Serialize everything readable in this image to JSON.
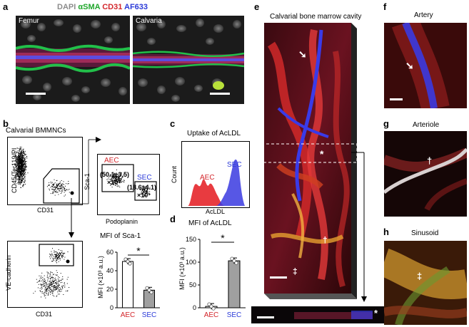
{
  "panel_labels": {
    "a": "a",
    "b": "b",
    "c": "c",
    "d": "d",
    "e": "e",
    "f": "f",
    "g": "g",
    "h": "h"
  },
  "panel_a": {
    "legend": [
      {
        "text": "DAPI",
        "color": "#8c8c8c"
      },
      {
        "text": "αSMA",
        "color": "#1fa62b"
      },
      {
        "text": "CD31",
        "color": "#d3262b"
      },
      {
        "text": "AF633",
        "color": "#2b3ad8"
      }
    ],
    "femur": "Femur",
    "calvaria": "Calvaria"
  },
  "panel_b": {
    "title": "Calvarial BMMNCs",
    "plot1": {
      "ylabel": "CD45/Ter119/PI",
      "xlabel": "CD31"
    },
    "plot2": {
      "ylabel": "VE-cadherin",
      "xlabel": "CD31"
    },
    "plot3": {
      "ylabel": "Sca-1",
      "xlabel": "Podoplanin",
      "aec": "AEC",
      "sec": "SEC",
      "aec_val_1": "(50.1±3.5)",
      "aec_val_2": "×10³",
      "sec_val_1": "(18.6±4.1)",
      "sec_val_2": "×10³"
    },
    "bar_chart_title": "MFI of Sca-1",
    "bar_chart_ylabel": "MFI (×10³ a.u.)",
    "significance": "*"
  },
  "panel_c": {
    "title": "Uptake of AcLDL",
    "ylabel": "Count",
    "xlabel": "AcLDL",
    "aec": "AEC",
    "sec": "SEC"
  },
  "panel_d": {
    "title": "MFI of AcLDL",
    "ylabel": "MFI (×10³ a.u.)",
    "significance": "*"
  },
  "panel_e": {
    "title": "Calvarial bone marrow cavity"
  },
  "panel_f": {
    "title": "Artery"
  },
  "panel_g": {
    "title": "Arteriole"
  },
  "panel_h": {
    "title": "Sinusoid"
  },
  "symbols": {
    "dagger": "†",
    "ddagger": "‡",
    "star": "*"
  },
  "chart_data": [
    {
      "type": "bar",
      "title": "MFI of Sca-1",
      "categories": [
        "AEC",
        "SEC"
      ],
      "values": [
        50,
        19
      ],
      "ylabel": "MFI (×10³ a.u.)",
      "ylim": [
        0,
        60
      ],
      "yticks": [
        0,
        20,
        40,
        60
      ],
      "bar_colors": [
        "#ffffff",
        "#a0a0a0"
      ],
      "category_colors": [
        "#d3262b",
        "#2b3ad8"
      ]
    },
    {
      "type": "bar",
      "title": "MFI of AcLDL",
      "categories": [
        "AEC",
        "SEC"
      ],
      "values": [
        3,
        103
      ],
      "ylabel": "MFI (×10³ a.u.)",
      "ylim": [
        0,
        150
      ],
      "yticks": [
        0,
        50,
        100,
        150
      ],
      "bar_colors": [
        "#ffffff",
        "#a0a0a0"
      ],
      "category_colors": [
        "#d3262b",
        "#2b3ad8"
      ]
    }
  ]
}
